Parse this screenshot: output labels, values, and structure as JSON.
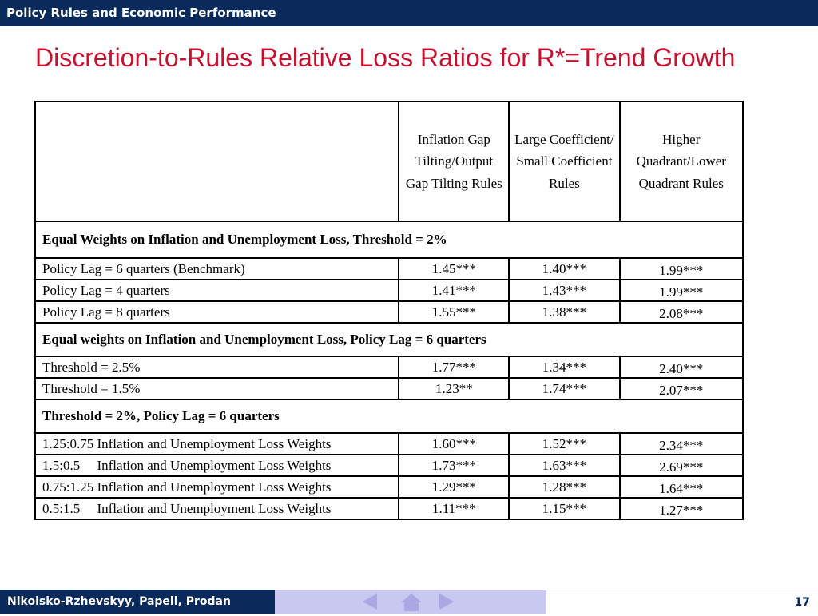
{
  "header": {
    "title": "Policy Rules and Economic Performance"
  },
  "slide": {
    "title": "Discretion-to-Rules Relative Loss Ratios for R*=Trend Growth"
  },
  "table": {
    "columns": [
      "",
      "Inflation Gap Tilting/Output Gap Tilting Rules",
      "Large Coefficient/ Small Coefficient Rules",
      "Higher Quadrant/Lower Quadrant Rules"
    ],
    "sections": [
      {
        "title": "Equal Weights on Inflation and Unemployment Loss, Threshold = 2%",
        "rows": [
          {
            "label": "Policy Lag = 6 quarters (Benchmark)",
            "values": [
              "1.45***",
              "1.40***",
              "1.99***"
            ]
          },
          {
            "label": "Policy Lag = 4 quarters",
            "values": [
              "1.41***",
              "1.43***",
              "1.99***"
            ]
          },
          {
            "label": "Policy Lag = 8 quarters",
            "values": [
              "1.55***",
              "1.38***",
              "2.08***"
            ]
          }
        ]
      },
      {
        "title": "Equal weights on Inflation and Unemployment Loss, Policy Lag = 6 quarters",
        "rows": [
          {
            "label": "Threshold = 2.5%",
            "values": [
              "1.77***",
              "1.34***",
              "2.40***"
            ]
          },
          {
            "label": "Threshold = 1.5%",
            "values": [
              "1.23**",
              "1.74***",
              "2.07***"
            ]
          }
        ]
      },
      {
        "title": "Threshold = 2%, Policy Lag = 6 quarters",
        "rows": [
          {
            "label": "1.25:0.75 Inflation and Unemployment Loss Weights",
            "values": [
              "1.60***",
              "1.52***",
              "2.34***"
            ]
          },
          {
            "label": "1.5:0.5     Inflation and Unemployment Loss Weights",
            "values": [
              "1.73***",
              "1.63***",
              "2.69***"
            ]
          },
          {
            "label": "0.75:1.25 Inflation and Unemployment Loss Weights",
            "values": [
              "1.29***",
              "1.28***",
              "1.64***"
            ]
          },
          {
            "label": "0.5:1.5     Inflation and Unemployment Loss Weights",
            "values": [
              "1.11***",
              "1.15***",
              "1.27***"
            ]
          }
        ]
      }
    ]
  },
  "footer": {
    "authors": "Nikolsko-Rzhevskyy, Papell, Prodan",
    "page_number": "17",
    "nav_icons": [
      "arrow-left-icon",
      "home-icon",
      "arrow-right-icon"
    ]
  },
  "colors": {
    "navy": "#0b2a5c",
    "title_red": "#c8102e",
    "nav_bg": "#c9c8f0"
  }
}
